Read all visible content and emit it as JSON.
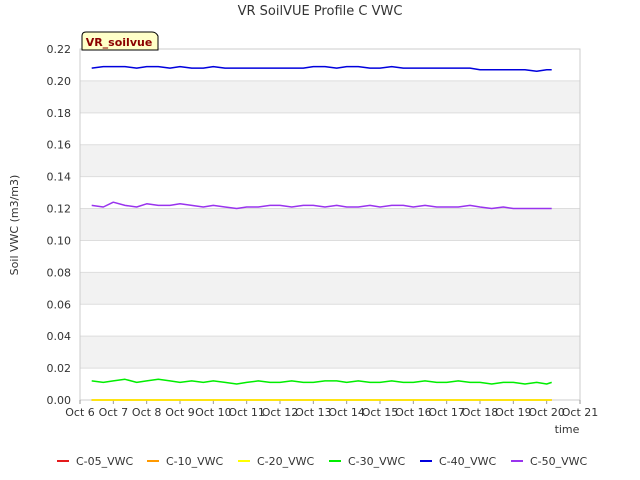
{
  "chart_data": {
    "type": "line",
    "title": "VR SoilVUE Profile C VWC",
    "xlabel": "time",
    "ylabel": "Soil VWC (m3/m3)",
    "ylim": [
      0,
      0.22
    ],
    "xlim": [
      6,
      21
    ],
    "yticks": [
      "0.00",
      "0.02",
      "0.04",
      "0.06",
      "0.08",
      "0.10",
      "0.12",
      "0.14",
      "0.16",
      "0.18",
      "0.20",
      "0.22"
    ],
    "xticks": [
      "Oct 6",
      "Oct 7",
      "Oct 8",
      "Oct 9",
      "Oct 10",
      "Oct 11",
      "Oct 12",
      "Oct 13",
      "Oct 14",
      "Oct 15",
      "Oct 16",
      "Oct 17",
      "Oct 18",
      "Oct 19",
      "Oct 20",
      "Oct 21"
    ],
    "badge": "VR_soilvue",
    "series": [
      {
        "name": "C-05_VWC",
        "color": "#e41a1c",
        "x": [
          6.35,
          20.15
        ],
        "values": [
          0.0,
          0.0
        ]
      },
      {
        "name": "C-10_VWC",
        "color": "#ff9900",
        "x": [
          6.35,
          20.15
        ],
        "values": [
          0.0,
          0.0
        ]
      },
      {
        "name": "C-20_VWC",
        "color": "#ffff00",
        "x": [
          6.35,
          20.15
        ],
        "values": [
          0.0,
          0.0
        ]
      },
      {
        "name": "C-30_VWC",
        "color": "#00ee00",
        "x": [
          6.35,
          6.7,
          7.0,
          7.35,
          7.7,
          8.0,
          8.35,
          8.7,
          9.0,
          9.35,
          9.7,
          10.0,
          10.35,
          10.7,
          11.0,
          11.35,
          11.7,
          12.0,
          12.35,
          12.7,
          13.0,
          13.35,
          13.7,
          14.0,
          14.35,
          14.7,
          15.0,
          15.35,
          15.7,
          16.0,
          16.35,
          16.7,
          17.0,
          17.35,
          17.7,
          18.0,
          18.35,
          18.7,
          19.0,
          19.35,
          19.7,
          20.0,
          20.15
        ],
        "values": [
          0.012,
          0.011,
          0.012,
          0.013,
          0.011,
          0.012,
          0.013,
          0.012,
          0.011,
          0.012,
          0.011,
          0.012,
          0.011,
          0.01,
          0.011,
          0.012,
          0.011,
          0.011,
          0.012,
          0.011,
          0.011,
          0.012,
          0.012,
          0.011,
          0.012,
          0.011,
          0.011,
          0.012,
          0.011,
          0.011,
          0.012,
          0.011,
          0.011,
          0.012,
          0.011,
          0.011,
          0.01,
          0.011,
          0.011,
          0.01,
          0.011,
          0.01,
          0.011
        ]
      },
      {
        "name": "C-40_VWC",
        "color": "#0000dd",
        "x": [
          6.35,
          6.7,
          7.0,
          7.35,
          7.7,
          8.0,
          8.35,
          8.7,
          9.0,
          9.35,
          9.7,
          10.0,
          10.35,
          10.7,
          11.0,
          11.35,
          11.7,
          12.0,
          12.35,
          12.7,
          13.0,
          13.35,
          13.7,
          14.0,
          14.35,
          14.7,
          15.0,
          15.35,
          15.7,
          16.0,
          16.35,
          16.7,
          17.0,
          17.35,
          17.7,
          18.0,
          18.35,
          18.7,
          19.0,
          19.35,
          19.7,
          20.0,
          20.15
        ],
        "values": [
          0.208,
          0.209,
          0.209,
          0.209,
          0.208,
          0.209,
          0.209,
          0.208,
          0.209,
          0.208,
          0.208,
          0.209,
          0.208,
          0.208,
          0.208,
          0.208,
          0.208,
          0.208,
          0.208,
          0.208,
          0.209,
          0.209,
          0.208,
          0.209,
          0.209,
          0.208,
          0.208,
          0.209,
          0.208,
          0.208,
          0.208,
          0.208,
          0.208,
          0.208,
          0.208,
          0.207,
          0.207,
          0.207,
          0.207,
          0.207,
          0.206,
          0.207,
          0.207
        ]
      },
      {
        "name": "C-50_VWC",
        "color": "#9933ee",
        "x": [
          6.35,
          6.7,
          7.0,
          7.35,
          7.7,
          8.0,
          8.35,
          8.7,
          9.0,
          9.35,
          9.7,
          10.0,
          10.35,
          10.7,
          11.0,
          11.35,
          11.7,
          12.0,
          12.35,
          12.7,
          13.0,
          13.35,
          13.7,
          14.0,
          14.35,
          14.7,
          15.0,
          15.35,
          15.7,
          16.0,
          16.35,
          16.7,
          17.0,
          17.35,
          17.7,
          18.0,
          18.35,
          18.7,
          19.0,
          19.35,
          19.7,
          20.0,
          20.15
        ],
        "values": [
          0.122,
          0.121,
          0.124,
          0.122,
          0.121,
          0.123,
          0.122,
          0.122,
          0.123,
          0.122,
          0.121,
          0.122,
          0.121,
          0.12,
          0.121,
          0.121,
          0.122,
          0.122,
          0.121,
          0.122,
          0.122,
          0.121,
          0.122,
          0.121,
          0.121,
          0.122,
          0.121,
          0.122,
          0.122,
          0.121,
          0.122,
          0.121,
          0.121,
          0.121,
          0.122,
          0.121,
          0.12,
          0.121,
          0.12,
          0.12,
          0.12,
          0.12,
          0.12
        ]
      }
    ]
  }
}
